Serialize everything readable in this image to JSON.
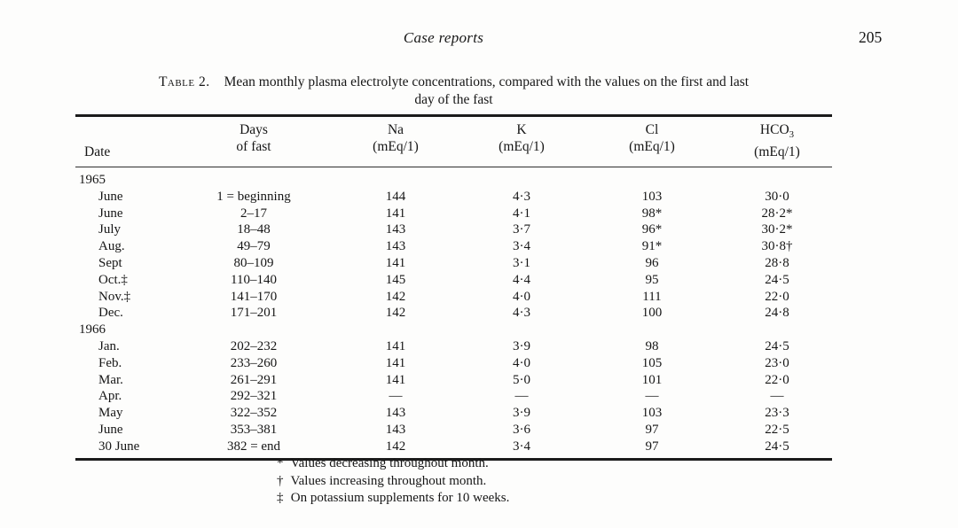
{
  "page": {
    "running_head": "Case reports",
    "page_number": "205"
  },
  "table": {
    "label": "Table 2.",
    "caption_line1": "Mean monthly plasma electrolyte concentrations, compared with the values on the first and last",
    "caption_line2": "day of the fast",
    "columns": [
      {
        "line1": "",
        "line2": "Date"
      },
      {
        "line1": "Days",
        "line2": "of fast"
      },
      {
        "line1": "Na",
        "line2": "(mEq/1)"
      },
      {
        "line1": "K",
        "line2": "(mEq/1)"
      },
      {
        "line1": "Cl",
        "line2": "(mEq/1)"
      },
      {
        "line1": "HCO",
        "line1_sub": "3",
        "line2": "(mEq/1)"
      }
    ],
    "rows": [
      {
        "date": "1965",
        "year": true
      },
      {
        "date": "June",
        "days": "1 = beginning",
        "na": "144",
        "k": "4·3",
        "cl": "103",
        "hco3": "30·0"
      },
      {
        "date": "June",
        "days": "2–17",
        "na": "141",
        "k": "4·1",
        "cl": "98*",
        "hco3": "28·2*"
      },
      {
        "date": "July",
        "days": "18–48",
        "na": "143",
        "k": "3·7",
        "cl": "96*",
        "hco3": "30·2*"
      },
      {
        "date": "Aug.",
        "days": "49–79",
        "na": "143",
        "k": "3·4",
        "cl": "91*",
        "hco3": "30·8†"
      },
      {
        "date": "Sept",
        "days": "80–109",
        "na": "141",
        "k": "3·1",
        "cl": "96",
        "hco3": "28·8"
      },
      {
        "date": "Oct.‡",
        "days": "110–140",
        "na": "145",
        "k": "4·4",
        "cl": "95",
        "hco3": "24·5"
      },
      {
        "date": "Nov.‡",
        "days": "141–170",
        "na": "142",
        "k": "4·0",
        "cl": "111",
        "hco3": "22·0"
      },
      {
        "date": "Dec.",
        "days": "171–201",
        "na": "142",
        "k": "4·3",
        "cl": "100",
        "hco3": "24·8"
      },
      {
        "date": "1966",
        "year": true
      },
      {
        "date": "Jan.",
        "days": "202–232",
        "na": "141",
        "k": "3·9",
        "cl": "98",
        "hco3": "24·5"
      },
      {
        "date": "Feb.",
        "days": "233–260",
        "na": "141",
        "k": "4·0",
        "cl": "105",
        "hco3": "23·0"
      },
      {
        "date": "Mar.",
        "days": "261–291",
        "na": "141",
        "k": "5·0",
        "cl": "101",
        "hco3": "22·0"
      },
      {
        "date": "Apr.",
        "days": "292–321",
        "na": "—",
        "k": "—",
        "cl": "—",
        "hco3": "—"
      },
      {
        "date": "May",
        "days": "322–352",
        "na": "143",
        "k": "3·9",
        "cl": "103",
        "hco3": "23·3"
      },
      {
        "date": "June",
        "days": "353–381",
        "na": "143",
        "k": "3·6",
        "cl": "97",
        "hco3": "22·5"
      },
      {
        "date": "30 June",
        "days": "382 = end",
        "na": "142",
        "k": "3·4",
        "cl": "97",
        "hco3": "24·5"
      }
    ],
    "footnotes": [
      {
        "symbol": "*",
        "text": "Values decreasing throughout month."
      },
      {
        "symbol": "†",
        "text": "Values increasing throughout month."
      },
      {
        "symbol": "‡",
        "text": "On potassium supplements for 10 weeks."
      }
    ]
  },
  "colors": {
    "paper": "#fdfdfc",
    "ink": "#161616"
  }
}
